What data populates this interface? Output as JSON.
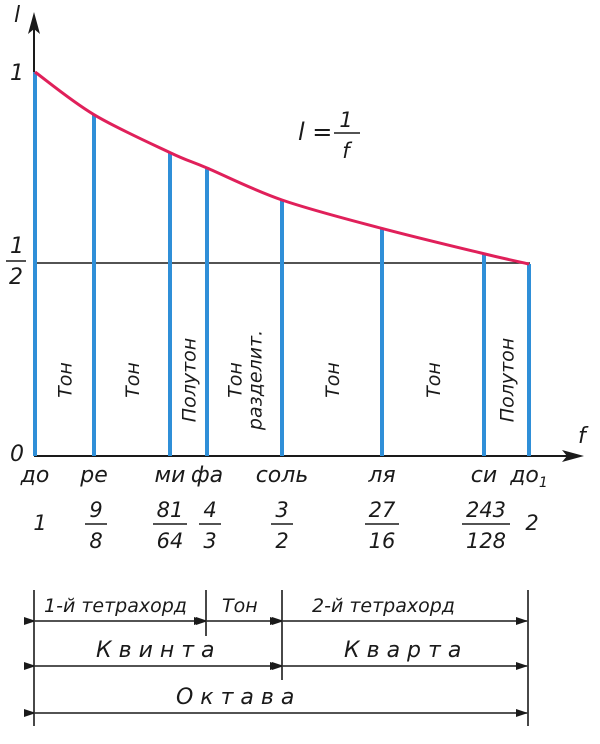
{
  "axes": {
    "y_label": "l",
    "x_label": "f",
    "y_tick_top": "1",
    "y_tick_half_num": "1",
    "y_tick_half_den": "2",
    "origin": "0"
  },
  "formula": {
    "lhs": "l =",
    "num": "1",
    "den": "f"
  },
  "colors": {
    "curve": "#e0205a",
    "lines": "#2f8fd8",
    "ink": "#1a1a1a"
  },
  "notes": [
    {
      "name": "note-do",
      "label": "до",
      "ratio": "1",
      "length": 1.0
    },
    {
      "name": "note-re",
      "label": "ре",
      "ratio_num": "9",
      "ratio_den": "8",
      "length": 0.8889
    },
    {
      "name": "note-mi",
      "label": "ми",
      "ratio_num": "81",
      "ratio_den": "64",
      "length": 0.7901
    },
    {
      "name": "note-fa",
      "label": "фа",
      "ratio_num": "4",
      "ratio_den": "3",
      "length": 0.75
    },
    {
      "name": "note-sol",
      "label": "соль",
      "ratio_num": "3",
      "ratio_den": "2",
      "length": 0.6667
    },
    {
      "name": "note-la",
      "label": "ля",
      "ratio_num": "27",
      "ratio_den": "16",
      "length": 0.5926
    },
    {
      "name": "note-si",
      "label": "си",
      "ratio_num": "243",
      "ratio_den": "128",
      "length": 0.5267
    },
    {
      "name": "note-do1",
      "label": "до",
      "label_sub": "1",
      "ratio": "2",
      "length": 0.5
    }
  ],
  "intervals": [
    {
      "name": "interval-1",
      "lines": [
        "Тон"
      ]
    },
    {
      "name": "interval-2",
      "lines": [
        "Тон"
      ]
    },
    {
      "name": "interval-3",
      "lines": [
        "Полутон"
      ]
    },
    {
      "name": "interval-4",
      "lines": [
        "Тон",
        "разделит."
      ]
    },
    {
      "name": "interval-5",
      "lines": [
        "Тон"
      ]
    },
    {
      "name": "interval-6",
      "lines": [
        "Тон"
      ]
    },
    {
      "name": "interval-7",
      "lines": [
        "Полутон"
      ]
    }
  ],
  "brackets": {
    "tetrachord1": "1-й тетрахорд",
    "tone": "Тон",
    "tetrachord2": "2-й тетрахорд",
    "quinta": "К в и н т а",
    "quarta": "К в а р т а",
    "octave": "О к т а в а"
  }
}
